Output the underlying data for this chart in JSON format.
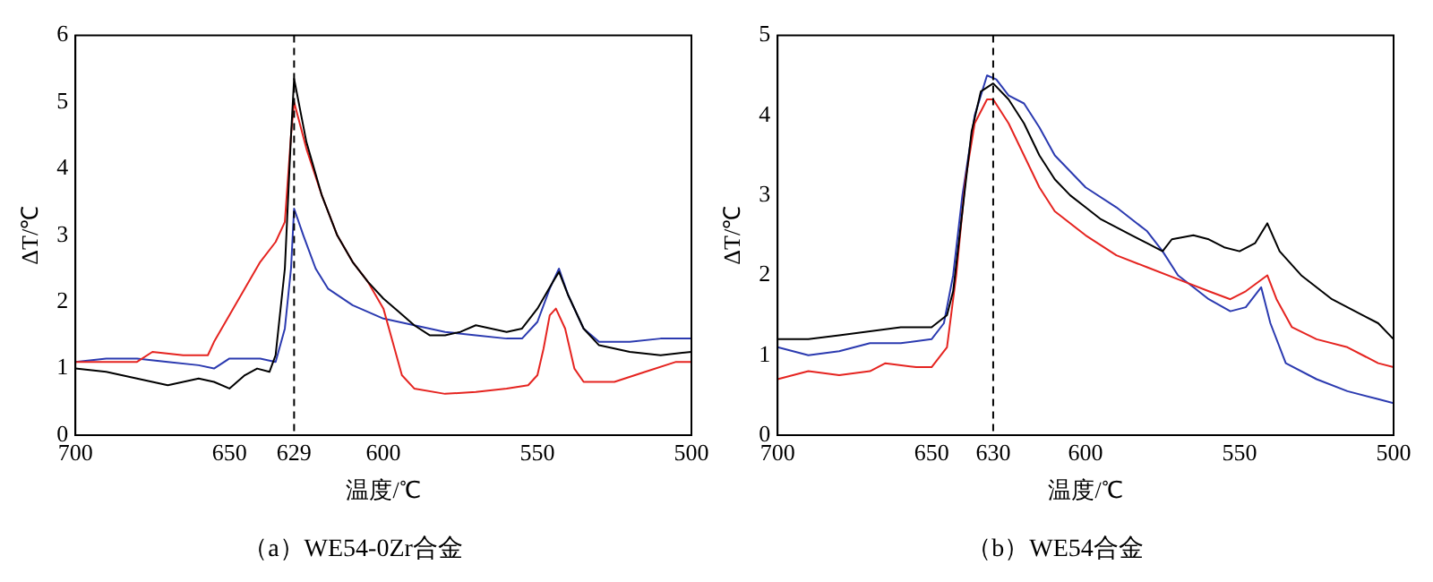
{
  "chart_data": [
    {
      "type": "line",
      "title": "（a）WE54-0Zr合金",
      "xlabel": "温度/℃",
      "ylabel": "ΔT/℃",
      "xlim": [
        700,
        500
      ],
      "ylim": [
        0,
        6
      ],
      "xticks": [
        700,
        650,
        629,
        600,
        550,
        500
      ],
      "yticks": [
        0,
        1,
        2,
        3,
        4,
        5,
        6
      ],
      "grid": false,
      "legend": false,
      "marker": "none",
      "line_style": "solid",
      "ref_lines": [
        {
          "axis": "x",
          "value": 629,
          "label": null,
          "line_style": "dashed",
          "color": "#000000"
        }
      ],
      "series": [
        {
          "color": "#000000",
          "x": [
            700,
            690,
            680,
            670,
            660,
            655,
            650,
            645,
            641,
            637,
            635,
            632,
            630,
            629,
            625,
            620,
            615,
            610,
            605,
            600,
            595,
            590,
            585,
            580,
            575,
            570,
            565,
            560,
            555,
            550,
            545,
            543,
            540,
            535,
            530,
            520,
            510,
            500
          ],
          "values": [
            1.0,
            0.95,
            0.85,
            0.75,
            0.85,
            0.8,
            0.7,
            0.9,
            1.0,
            0.95,
            1.2,
            2.5,
            4.5,
            5.35,
            4.4,
            3.6,
            3.0,
            2.6,
            2.3,
            2.05,
            1.85,
            1.65,
            1.5,
            1.5,
            1.55,
            1.65,
            1.6,
            1.55,
            1.6,
            1.9,
            2.3,
            2.45,
            2.1,
            1.6,
            1.35,
            1.25,
            1.2,
            1.25
          ]
        },
        {
          "color": "#e52420",
          "x": [
            700,
            690,
            680,
            675,
            665,
            657,
            655,
            650,
            645,
            640,
            635,
            632,
            630,
            629,
            625,
            620,
            615,
            610,
            605,
            600,
            597,
            594,
            590,
            580,
            570,
            560,
            553,
            550,
            548,
            546,
            544,
            541,
            538,
            535,
            525,
            515,
            505,
            500
          ],
          "values": [
            1.1,
            1.1,
            1.1,
            1.25,
            1.2,
            1.2,
            1.4,
            1.8,
            2.2,
            2.6,
            2.9,
            3.2,
            4.5,
            5.0,
            4.3,
            3.6,
            3.0,
            2.6,
            2.3,
            1.9,
            1.4,
            0.9,
            0.7,
            0.62,
            0.65,
            0.7,
            0.75,
            0.9,
            1.3,
            1.8,
            1.9,
            1.6,
            1.0,
            0.8,
            0.8,
            0.95,
            1.1,
            1.1
          ]
        },
        {
          "color": "#2b3ab0",
          "x": [
            700,
            690,
            680,
            670,
            660,
            655,
            650,
            640,
            635,
            632,
            630,
            629,
            626,
            622,
            618,
            610,
            600,
            590,
            580,
            570,
            560,
            555,
            550,
            546,
            543,
            540,
            535,
            530,
            520,
            510,
            500
          ],
          "values": [
            1.1,
            1.15,
            1.15,
            1.1,
            1.05,
            1.0,
            1.15,
            1.15,
            1.1,
            1.6,
            2.5,
            3.4,
            3.0,
            2.5,
            2.2,
            1.95,
            1.75,
            1.65,
            1.55,
            1.5,
            1.45,
            1.45,
            1.7,
            2.2,
            2.5,
            2.1,
            1.6,
            1.4,
            1.4,
            1.45,
            1.45
          ]
        }
      ]
    },
    {
      "type": "line",
      "title": "（b）WE54合金",
      "xlabel": "温度/℃",
      "ylabel": "ΔT/℃",
      "xlim": [
        700,
        500
      ],
      "ylim": [
        0,
        5
      ],
      "xticks": [
        700,
        650,
        630,
        600,
        550,
        500
      ],
      "yticks": [
        0,
        1,
        2,
        3,
        4,
        5
      ],
      "grid": false,
      "legend": false,
      "marker": "none",
      "line_style": "solid",
      "ref_lines": [
        {
          "axis": "x",
          "value": 630,
          "label": null,
          "line_style": "dashed",
          "color": "#000000"
        }
      ],
      "series": [
        {
          "color": "#000000",
          "x": [
            700,
            690,
            680,
            670,
            660,
            650,
            645,
            643,
            640,
            637,
            634,
            630,
            625,
            620,
            615,
            610,
            605,
            600,
            595,
            590,
            585,
            580,
            575,
            572,
            565,
            560,
            555,
            550,
            545,
            541,
            537,
            530,
            520,
            510,
            505,
            500
          ],
          "values": [
            1.2,
            1.2,
            1.25,
            1.3,
            1.35,
            1.35,
            1.5,
            1.8,
            2.8,
            3.8,
            4.3,
            4.4,
            4.2,
            3.9,
            3.5,
            3.2,
            3.0,
            2.85,
            2.7,
            2.6,
            2.5,
            2.4,
            2.3,
            2.45,
            2.5,
            2.45,
            2.35,
            2.3,
            2.4,
            2.65,
            2.3,
            2.0,
            1.7,
            1.5,
            1.4,
            1.2
          ]
        },
        {
          "color": "#e52420",
          "x": [
            700,
            690,
            680,
            670,
            665,
            655,
            650,
            645,
            642,
            639,
            636,
            632,
            630,
            625,
            620,
            615,
            610,
            600,
            590,
            580,
            570,
            560,
            553,
            548,
            541,
            538,
            533,
            525,
            515,
            505,
            500
          ],
          "values": [
            0.7,
            0.8,
            0.75,
            0.8,
            0.9,
            0.85,
            0.85,
            1.1,
            2.0,
            3.2,
            3.9,
            4.2,
            4.2,
            3.9,
            3.5,
            3.1,
            2.8,
            2.5,
            2.25,
            2.1,
            1.95,
            1.8,
            1.7,
            1.8,
            2.0,
            1.7,
            1.35,
            1.2,
            1.1,
            0.9,
            0.85
          ]
        },
        {
          "color": "#2b3ab0",
          "x": [
            700,
            690,
            680,
            670,
            660,
            650,
            646,
            643,
            640,
            636,
            632,
            629,
            625,
            620,
            615,
            610,
            600,
            590,
            580,
            575,
            570,
            565,
            560,
            553,
            548,
            543,
            540,
            535,
            525,
            515,
            505,
            500
          ],
          "values": [
            1.1,
            1.0,
            1.05,
            1.15,
            1.15,
            1.2,
            1.4,
            2.0,
            3.0,
            4.0,
            4.5,
            4.45,
            4.25,
            4.15,
            3.85,
            3.5,
            3.1,
            2.85,
            2.55,
            2.3,
            2.0,
            1.85,
            1.7,
            1.55,
            1.6,
            1.85,
            1.4,
            0.9,
            0.7,
            0.55,
            0.45,
            0.4
          ]
        }
      ]
    }
  ]
}
